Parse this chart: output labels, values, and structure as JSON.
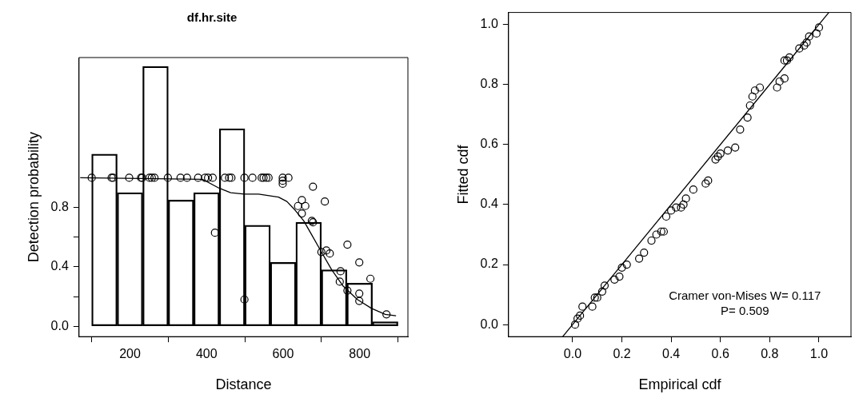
{
  "chart_data": [
    {
      "type": "bar",
      "title": "df.hr.site",
      "xlabel": "Distance",
      "ylabel": "Detection probability",
      "xlim": [
        67,
        926
      ],
      "ylim": [
        -0.07,
        1.81
      ],
      "xticks": [
        200,
        400,
        600,
        800
      ],
      "yticks": [
        {
          "value": 0,
          "label": "0.0"
        },
        {
          "value": 0.2,
          "label": null
        },
        {
          "value": 0.4,
          "label": "0.4"
        },
        {
          "value": 0.6,
          "label": null
        },
        {
          "value": 0.8,
          "label": "0.8"
        }
      ],
      "series": [
        {
          "type": "bar",
          "color": "#000000",
          "x": [
            133.3,
            200,
            266.7,
            333.3,
            400,
            466.7,
            533.3,
            600,
            666.7,
            733.3,
            800,
            866.7
          ],
          "values": [
            1.16,
            0.9,
            1.75,
            0.85,
            0.9,
            1.33,
            0.68,
            0.43,
            0.7,
            0.38,
            0.29,
            0.03
          ]
        },
        {
          "type": "line",
          "color": "#000000",
          "x": [
            70,
            389,
            433,
            463,
            499,
            536,
            588,
            610,
            632,
            654,
            676,
            698,
            727,
            757,
            794,
            831,
            867,
            895
          ],
          "values": [
            1,
            0.99,
            0.93,
            0.9,
            0.89,
            0.89,
            0.87,
            0.84,
            0.78,
            0.71,
            0.61,
            0.51,
            0.38,
            0.27,
            0.18,
            0.12,
            0.08,
            0.07
          ]
        },
        {
          "type": "scatter",
          "color": "#000000",
          "marker": "circle",
          "x": [
            100,
            152,
            156,
            198,
            229,
            232,
            251,
            257,
            264,
            299,
            332,
            349,
            378,
            396,
            404,
            416,
            448,
            459,
            465,
            499,
            520,
            544,
            549,
            556,
            562,
            599,
            614,
            599,
            599,
            422,
            499,
            678,
            649,
            639,
            658,
            649,
            709,
            675,
            678,
            768,
            713,
            722,
            700,
            799,
            750,
            828,
            748,
            768,
            799,
            799,
            870
          ],
          "values": [
            1,
            1,
            1,
            1,
            1,
            1,
            1,
            1,
            1,
            1,
            1,
            1,
            1,
            1,
            1,
            1,
            1,
            1,
            1,
            1,
            1,
            1,
            1,
            1,
            1,
            1,
            1,
            0.98,
            0.96,
            0.63,
            0.18,
            0.94,
            0.85,
            0.81,
            0.81,
            0.76,
            0.84,
            0.71,
            0.7,
            0.55,
            0.51,
            0.49,
            0.5,
            0.43,
            0.37,
            0.32,
            0.3,
            0.24,
            0.22,
            0.17,
            0.08
          ]
        }
      ]
    },
    {
      "type": "scatter",
      "xlabel": "Empirical cdf",
      "ylabel": "Fitted cdf",
      "xlim": [
        -0.26,
        1.13
      ],
      "ylim": [
        -0.04,
        1.04
      ],
      "xticks": [
        {
          "value": 0,
          "label": "0.0"
        },
        {
          "value": 0.2,
          "label": "0.2"
        },
        {
          "value": 0.4,
          "label": "0.4"
        },
        {
          "value": 0.6,
          "label": "0.6"
        },
        {
          "value": 0.8,
          "label": "0.8"
        },
        {
          "value": 1,
          "label": "1.0"
        }
      ],
      "yticks": [
        {
          "value": 0,
          "label": "0.0"
        },
        {
          "value": 0.2,
          "label": "0.2"
        },
        {
          "value": 0.4,
          "label": "0.4"
        },
        {
          "value": 0.6,
          "label": "0.6"
        },
        {
          "value": 0.8,
          "label": "0.8"
        },
        {
          "value": 1,
          "label": "1.0"
        }
      ],
      "annotations": [
        "Cramer von-Mises W= 0.117",
        "P= 0.509"
      ],
      "series": [
        {
          "type": "scatter",
          "color": "#000000",
          "marker": "circle",
          "x": [
            0.01,
            0.02,
            0.03,
            0.04,
            0.08,
            0.09,
            0.1,
            0.12,
            0.13,
            0.17,
            0.19,
            0.2,
            0.22,
            0.27,
            0.29,
            0.32,
            0.34,
            0.36,
            0.37,
            0.38,
            0.4,
            0.42,
            0.44,
            0.45,
            0.46,
            0.49,
            0.54,
            0.55,
            0.58,
            0.59,
            0.6,
            0.63,
            0.66,
            0.68,
            0.71,
            0.72,
            0.73,
            0.74,
            0.76,
            0.83,
            0.84,
            0.86,
            0.86,
            0.87,
            0.88,
            0.92,
            0.94,
            0.95,
            0.96,
            0.99,
            1
          ],
          "values": [
            0,
            0.02,
            0.03,
            0.06,
            0.06,
            0.09,
            0.09,
            0.11,
            0.13,
            0.15,
            0.16,
            0.19,
            0.2,
            0.22,
            0.24,
            0.28,
            0.3,
            0.31,
            0.31,
            0.36,
            0.38,
            0.39,
            0.39,
            0.4,
            0.42,
            0.45,
            0.47,
            0.48,
            0.55,
            0.56,
            0.57,
            0.58,
            0.59,
            0.65,
            0.69,
            0.73,
            0.76,
            0.78,
            0.79,
            0.79,
            0.81,
            0.82,
            0.88,
            0.88,
            0.89,
            0.92,
            0.93,
            0.94,
            0.96,
            0.97,
            0.99
          ]
        },
        {
          "type": "line",
          "color": "#000000",
          "x": [
            -0.04,
            1.04
          ],
          "values": [
            -0.04,
            1.04
          ]
        }
      ]
    }
  ]
}
